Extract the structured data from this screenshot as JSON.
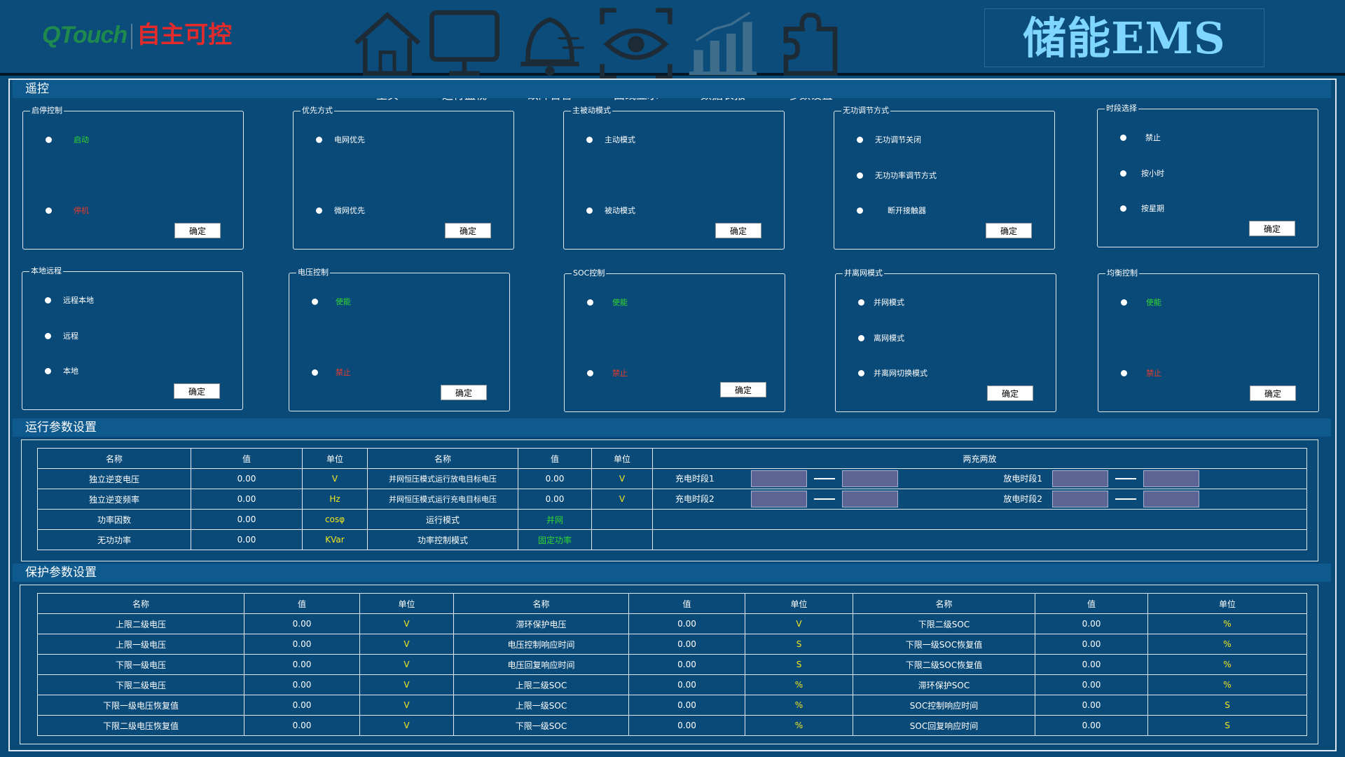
{
  "logo": {
    "brand_en": "QTouch",
    "brand_cn": "自主可控"
  },
  "nav": [
    {
      "label": "主页",
      "icon": "home-icon"
    },
    {
      "label": "运行监视",
      "icon": "monitor-icon"
    },
    {
      "label": "故障告警",
      "icon": "alarm-bell-icon"
    },
    {
      "label": "曲线显示",
      "icon": "eye-icon"
    },
    {
      "label": "数据表报",
      "icon": "bar-chart-icon"
    },
    {
      "label": "参数设置",
      "icon": "puzzle-icon"
    }
  ],
  "title": "储能EMS",
  "sections": {
    "remote": "遥控",
    "run_params": "运行参数设置",
    "protect_params": "保护参数设置"
  },
  "confirm": "确定",
  "panels": {
    "start_stop": {
      "title": "启停控制",
      "options": [
        "启动",
        "停机"
      ]
    },
    "priority": {
      "title": "优先方式",
      "options": [
        "电网优先",
        "微网优先"
      ]
    },
    "active_passive": {
      "title": "主被动模式",
      "options": [
        "主动模式",
        "被动模式"
      ]
    },
    "reactive_mode": {
      "title": "无功调节方式",
      "options": [
        "无功调节关闭",
        "无功功率调节方式",
        "断开接触器"
      ]
    },
    "period_select": {
      "title": "时段选择",
      "options": [
        "禁止",
        "按小时",
        "按星期"
      ]
    },
    "local_remote": {
      "title": "本地远程",
      "options": [
        "远程本地",
        "远程",
        "本地"
      ]
    },
    "voltage_ctrl": {
      "title": "电压控制",
      "options": [
        "使能",
        "禁止"
      ]
    },
    "soc_ctrl": {
      "title": "SOC控制",
      "options": [
        "使能",
        "禁止"
      ]
    },
    "grid_mode": {
      "title": "并离网模式",
      "options": [
        "并网模式",
        "离网模式",
        "并离网切换模式"
      ]
    },
    "balance_ctrl": {
      "title": "均衡控制",
      "options": [
        "使能",
        "禁止"
      ]
    }
  },
  "run_table": {
    "headers": [
      "名称",
      "值",
      "单位",
      "名称",
      "值",
      "单位",
      "两充两放"
    ],
    "rows": [
      {
        "name1": "独立逆变电压",
        "val1": "0.00",
        "unit1": "V",
        "name2": "并网恒压模式运行放电目标电压",
        "val2": "0.00",
        "unit2": "V"
      },
      {
        "name1": "独立逆变频率",
        "val1": "0.00",
        "unit1": "Hz",
        "name2": "并网恒压模式运行充电目标电压",
        "val2": "0.00",
        "unit2": "V"
      },
      {
        "name1": "功率因数",
        "val1": "0.00",
        "unit1": "cosφ",
        "name2": "运行模式",
        "val2": "并网",
        "unit2": ""
      },
      {
        "name1": "无功功率",
        "val1": "0.00",
        "unit1": "KVar",
        "name2": "功率控制模式",
        "val2": "固定功率",
        "unit2": ""
      }
    ],
    "charge1": "充电时段1",
    "charge2": "充电时段2",
    "discharge1": "放电时段1",
    "discharge2": "放电时段2"
  },
  "protect_table": {
    "headers": [
      "名称",
      "值",
      "单位",
      "名称",
      "值",
      "单位",
      "名称",
      "值",
      "单位"
    ],
    "rows": [
      [
        "上限二级电压",
        "0.00",
        "V",
        "滞环保护电压",
        "0.00",
        "V",
        "下限二级SOC",
        "0.00",
        "%"
      ],
      [
        "上限一级电压",
        "0.00",
        "V",
        "电压控制响应时间",
        "0.00",
        "S",
        "下限一级SOC恢复值",
        "0.00",
        "%"
      ],
      [
        "下限一级电压",
        "0.00",
        "V",
        "电压回复响应时间",
        "0.00",
        "S",
        "下限二级SOC恢复值",
        "0.00",
        "%"
      ],
      [
        "下限二级电压",
        "0.00",
        "V",
        "上限二级SOC",
        "0.00",
        "%",
        "滞环保护SOC",
        "0.00",
        "%"
      ],
      [
        "下限一级电压恢复值",
        "0.00",
        "V",
        "上限一级SOC",
        "0.00",
        "%",
        "SOC控制响应时间",
        "0.00",
        "S"
      ],
      [
        "下限二级电压恢复值",
        "0.00",
        "V",
        "下限一级SOC",
        "0.00",
        "%",
        "SOC回复响应时间",
        "0.00",
        "S"
      ]
    ]
  },
  "colors": {
    "background": "#0a4a78",
    "section_bar": "#0e5a8f",
    "unit_yellow": "#f2e81e",
    "enable_green": "#31d631",
    "disable_red": "#e83a2b",
    "time_input": "#5c6594",
    "brand_title": "#7fd6ff"
  }
}
